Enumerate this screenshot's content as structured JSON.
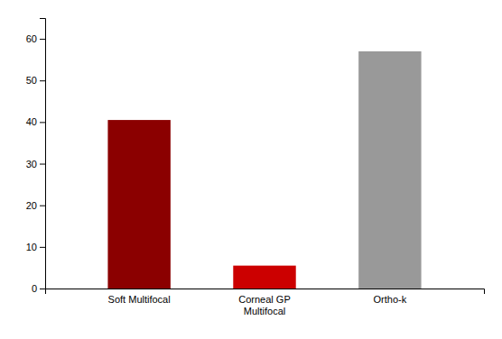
{
  "chart_data": {
    "type": "bar",
    "categories": [
      "Soft Multifocal",
      "Corneal GP\nMultifocal",
      "Ortho-k"
    ],
    "values": [
      40.5,
      5.5,
      57.0
    ],
    "colors": [
      "#8B0000",
      "#CC0000",
      "#999999"
    ],
    "ylim": [
      0,
      65
    ],
    "yticks": [
      0,
      10,
      20,
      30,
      40,
      50,
      60
    ],
    "grid": false
  }
}
